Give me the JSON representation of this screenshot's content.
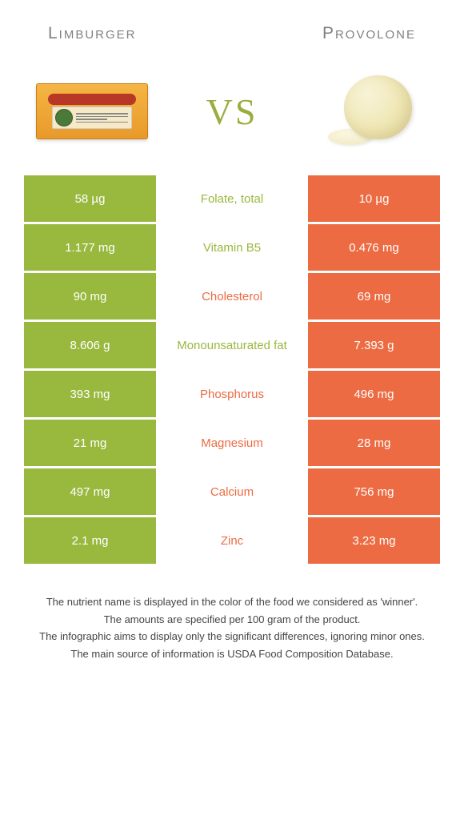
{
  "header": {
    "left": "Limburger",
    "right": "Provolone"
  },
  "vs": "VS",
  "colors": {
    "green": "#99b83e",
    "orange": "#ec6b42",
    "title": "#808080"
  },
  "rows": [
    {
      "left": "58 µg",
      "label": "Folate, total",
      "right": "10 µg",
      "winner": "left"
    },
    {
      "left": "1.177 mg",
      "label": "Vitamin B5",
      "right": "0.476 mg",
      "winner": "left"
    },
    {
      "left": "90 mg",
      "label": "Cholesterol",
      "right": "69 mg",
      "winner": "right"
    },
    {
      "left": "8.606 g",
      "label": "Monounsaturated fat",
      "right": "7.393 g",
      "winner": "left"
    },
    {
      "left": "393 mg",
      "label": "Phosphorus",
      "right": "496 mg",
      "winner": "right"
    },
    {
      "left": "21 mg",
      "label": "Magnesium",
      "right": "28 mg",
      "winner": "right"
    },
    {
      "left": "497 mg",
      "label": "Calcium",
      "right": "756 mg",
      "winner": "right"
    },
    {
      "left": "2.1 mg",
      "label": "Zinc",
      "right": "3.23 mg",
      "winner": "right"
    }
  ],
  "footer": [
    "The nutrient name is displayed in the color of the food we considered as 'winner'.",
    "The amounts are specified per 100 gram of the product.",
    "The infographic aims to display only the significant differences, ignoring minor ones.",
    "The main source of information is USDA Food Composition Database."
  ]
}
